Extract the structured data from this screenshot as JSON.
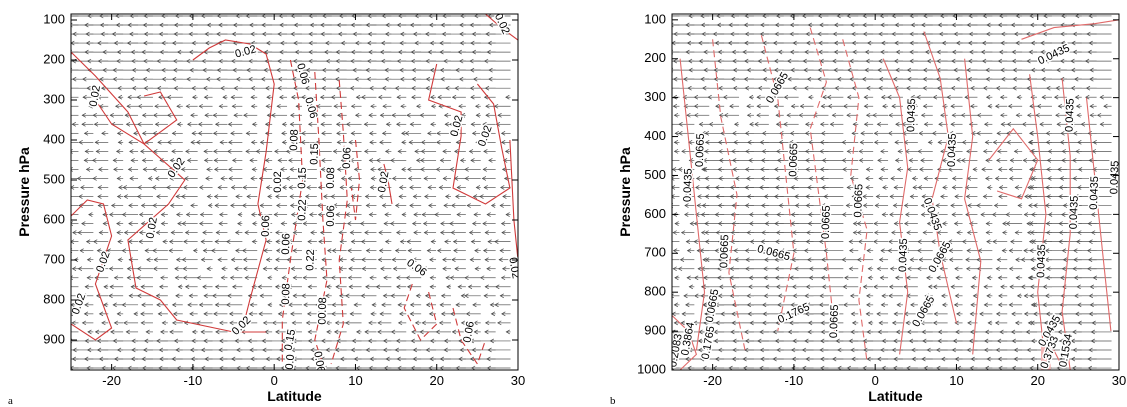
{
  "chart_data": [
    {
      "type": "contour",
      "panel_label": "a",
      "xlabel": "Latitude",
      "ylabel": "Pressure hPa",
      "xlim": [
        -25,
        30
      ],
      "ylim": [
        975,
        85
      ],
      "xticks": [
        -20,
        -10,
        0,
        10,
        20,
        30
      ],
      "yticks": [
        100,
        200,
        300,
        400,
        500,
        600,
        700,
        800,
        900
      ],
      "contour_color": "#d03a3a",
      "contour_labels": [
        {
          "text": "0.02",
          "lat": -22,
          "p": 290,
          "rot": -80
        },
        {
          "text": "0.02",
          "lat": -3.5,
          "p": 180,
          "rot": -15
        },
        {
          "text": "0.06",
          "lat": 3.5,
          "p": 235,
          "rot": 75
        },
        {
          "text": "0.06",
          "lat": 4.5,
          "p": 320,
          "rot": 75
        },
        {
          "text": "0.02",
          "lat": -12,
          "p": 470,
          "rot": -55
        },
        {
          "text": "0.08",
          "lat": 2.5,
          "p": 400,
          "rot": -88
        },
        {
          "text": "0.02",
          "lat": 0.5,
          "p": 505,
          "rot": -90
        },
        {
          "text": "0.15",
          "lat": 3.5,
          "p": 495,
          "rot": -88
        },
        {
          "text": "0.22",
          "lat": 3.5,
          "p": 575,
          "rot": -88
        },
        {
          "text": "0.15",
          "lat": 5,
          "p": 435,
          "rot": -88
        },
        {
          "text": "0.08",
          "lat": 7,
          "p": 495,
          "rot": -88
        },
        {
          "text": "0.06",
          "lat": 9,
          "p": 445,
          "rot": -88
        },
        {
          "text": "0.06",
          "lat": 7,
          "p": 590,
          "rot": -88
        },
        {
          "text": "0.02",
          "lat": 13.5,
          "p": 505,
          "rot": -80
        },
        {
          "text": "0.02",
          "lat": 22.5,
          "p": 365,
          "rot": -75
        },
        {
          "text": "0.02",
          "lat": 26,
          "p": 390,
          "rot": -70
        },
        {
          "text": "0.02",
          "lat": -15,
          "p": 620,
          "rot": -80
        },
        {
          "text": "0.02",
          "lat": -21,
          "p": 705,
          "rot": -70
        },
        {
          "text": "0.06",
          "lat": -1,
          "p": 615,
          "rot": -88
        },
        {
          "text": "0.06",
          "lat": 1.5,
          "p": 660,
          "rot": -88
        },
        {
          "text": "0.22",
          "lat": 4.5,
          "p": 700,
          "rot": -88
        },
        {
          "text": "0.08",
          "lat": 1.5,
          "p": 785,
          "rot": -88
        },
        {
          "text": "0.15",
          "lat": 6,
          "p": 835,
          "rot": -88
        },
        {
          "text": "0.08",
          "lat": 6,
          "p": 820,
          "rot": -88
        },
        {
          "text": "0.15",
          "lat": 2,
          "p": 900,
          "rot": -80
        },
        {
          "text": "0.06",
          "lat": 17.5,
          "p": 720,
          "rot": 35
        },
        {
          "text": "0.06",
          "lat": 24,
          "p": 880,
          "rot": -80
        },
        {
          "text": "0.02",
          "lat": -24,
          "p": 810,
          "rot": -70
        },
        {
          "text": "0.02",
          "lat": -4,
          "p": 865,
          "rot": -45
        },
        {
          "text": "0.02",
          "lat": 29.5,
          "p": 720,
          "rot": 80
        },
        {
          "text": "0.02",
          "lat": 28,
          "p": 110,
          "rot": 65
        },
        {
          "text": "0.0",
          "lat": 2,
          "p": 955,
          "rot": -85
        },
        {
          "text": "0.06",
          "lat": 5.5,
          "p": 955,
          "rot": 80
        }
      ],
      "vectors": "zonal wind arrows on regular grid"
    },
    {
      "type": "contour",
      "panel_label": "b",
      "xlabel": "Latitude",
      "ylabel": "Pressure hPa",
      "xlim": [
        -25,
        30
      ],
      "ylim": [
        1000,
        85
      ],
      "xticks": [
        -20,
        -10,
        0,
        10,
        20,
        30
      ],
      "yticks": [
        100,
        200,
        300,
        400,
        500,
        600,
        700,
        800,
        900,
        1000
      ],
      "contour_color": "#e06a6a",
      "contour_labels": [
        {
          "text": "0.0435",
          "lat": 22,
          "p": 190,
          "rot": -25
        },
        {
          "text": "0.0665",
          "lat": -12,
          "p": 275,
          "rot": -60
        },
        {
          "text": "0.0665",
          "lat": -21.5,
          "p": 435,
          "rot": -88
        },
        {
          "text": "0.0435",
          "lat": -23,
          "p": 525,
          "rot": -88
        },
        {
          "text": "0.0665",
          "lat": -10,
          "p": 460,
          "rot": -88
        },
        {
          "text": "0.0435",
          "lat": 4.5,
          "p": 345,
          "rot": -88
        },
        {
          "text": "0.0435",
          "lat": 9.5,
          "p": 435,
          "rot": -88
        },
        {
          "text": "0.0665",
          "lat": -2,
          "p": 565,
          "rot": -88
        },
        {
          "text": "0.0665",
          "lat": -6,
          "p": 620,
          "rot": -88
        },
        {
          "text": "0.0435",
          "lat": 7,
          "p": 600,
          "rot": 70
        },
        {
          "text": "0.0435",
          "lat": 24,
          "p": 345,
          "rot": -88
        },
        {
          "text": "0.0435",
          "lat": 27,
          "p": 545,
          "rot": -88
        },
        {
          "text": "0.0435",
          "lat": 24.5,
          "p": 595,
          "rot": -88
        },
        {
          "text": "0.0435",
          "lat": 29.5,
          "p": 505,
          "rot": -88
        },
        {
          "text": "0.0665",
          "lat": -18.5,
          "p": 695,
          "rot": -88
        },
        {
          "text": "0.0665",
          "lat": -12.5,
          "p": 700,
          "rot": 15
        },
        {
          "text": "0.0435",
          "lat": 3.5,
          "p": 705,
          "rot": -88
        },
        {
          "text": "0.0665",
          "lat": 8,
          "p": 710,
          "rot": -60
        },
        {
          "text": "0.0435",
          "lat": 20.5,
          "p": 720,
          "rot": -88
        },
        {
          "text": "0.0665",
          "lat": -20,
          "p": 835,
          "rot": -80
        },
        {
          "text": "0.1765",
          "lat": -10,
          "p": 855,
          "rot": -25
        },
        {
          "text": "0.0665",
          "lat": -5,
          "p": 875,
          "rot": -88
        },
        {
          "text": "0.0665",
          "lat": 6,
          "p": 850,
          "rot": -60
        },
        {
          "text": "0.0435",
          "lat": 21.5,
          "p": 900,
          "rot": -60
        },
        {
          "text": "0.3864",
          "lat": -23,
          "p": 920,
          "rot": -80
        },
        {
          "text": "0.2083",
          "lat": -24.5,
          "p": 950,
          "rot": -80
        },
        {
          "text": "0.1765",
          "lat": -20.5,
          "p": 930,
          "rot": -80
        },
        {
          "text": "0.3733",
          "lat": 21.5,
          "p": 955,
          "rot": -70
        },
        {
          "text": "0.1534",
          "lat": 23.5,
          "p": 950,
          "rot": -80
        }
      ],
      "vectors": "zonal wind arrows on regular grid"
    }
  ]
}
